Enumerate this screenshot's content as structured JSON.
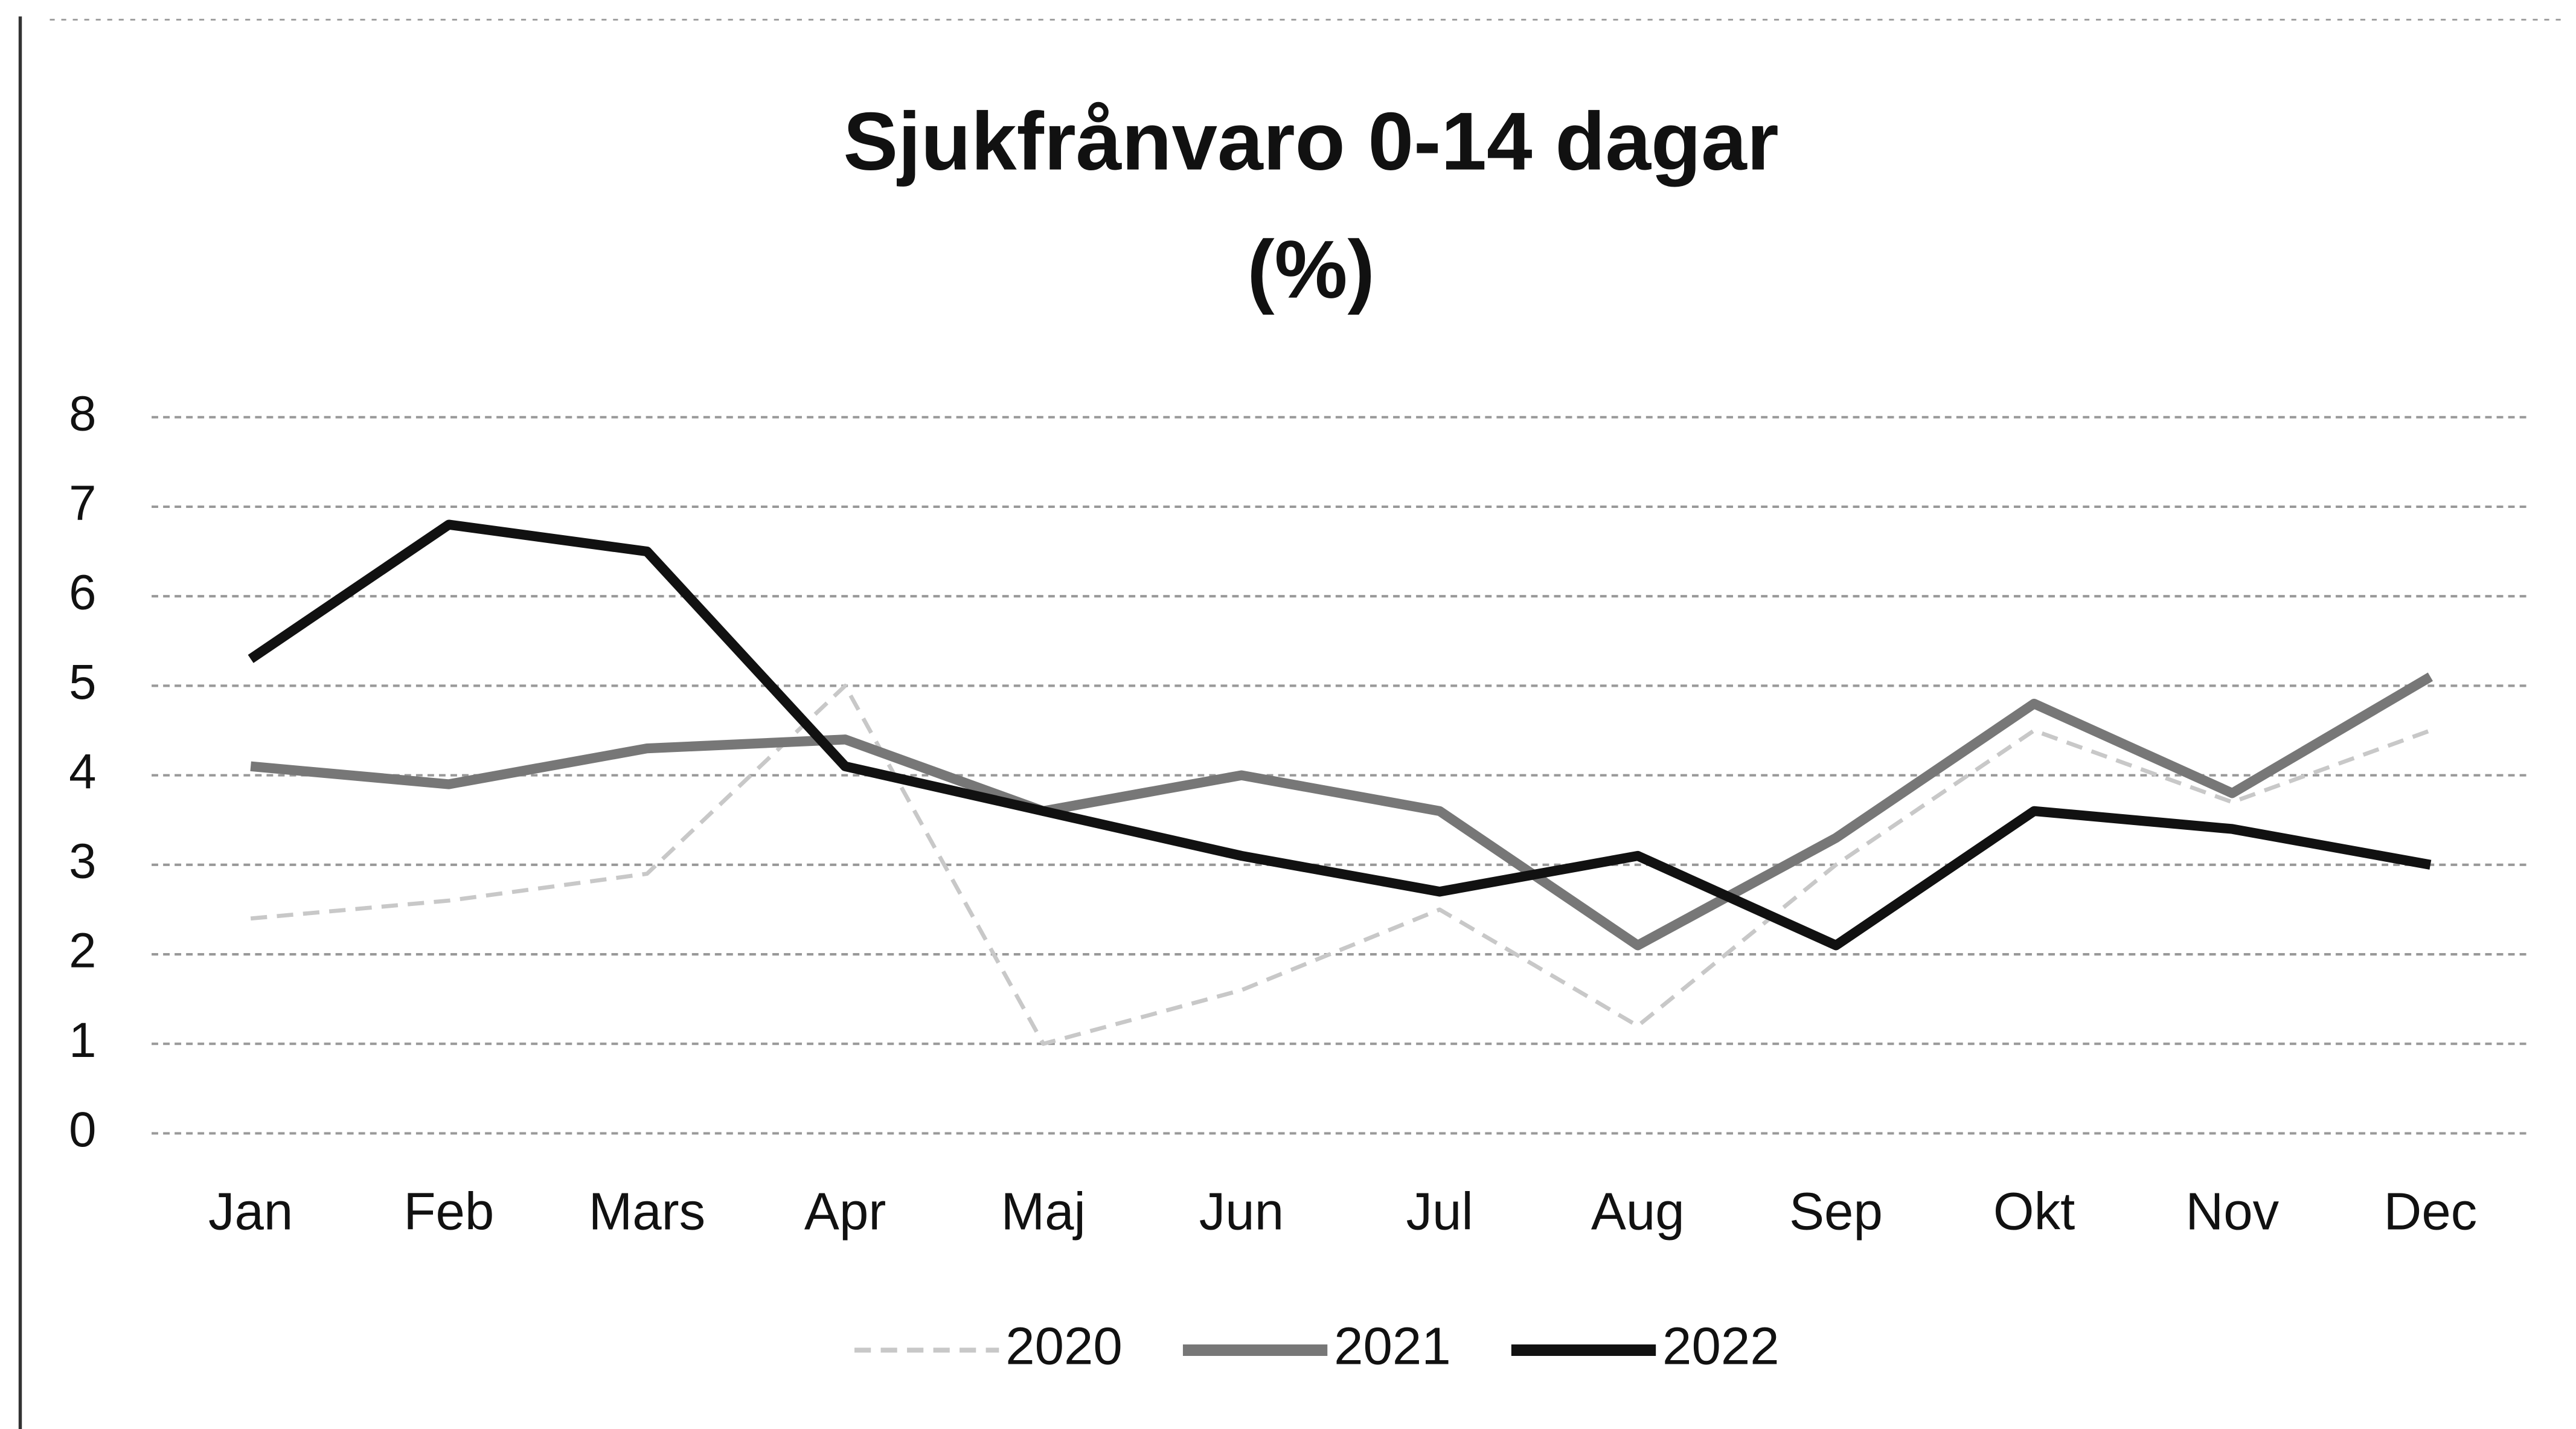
{
  "chart_data": {
    "type": "line",
    "title": [
      "Sjukfrånvaro 0-14 dagar",
      "(%)"
    ],
    "categories": [
      "Jan",
      "Feb",
      "Mars",
      "Apr",
      "Maj",
      "Jun",
      "Jul",
      "Aug",
      "Sep",
      "Okt",
      "Nov",
      "Dec"
    ],
    "series": [
      {
        "name": "2020",
        "color": "#c8c8c8",
        "dashed": true,
        "values": [
          2.4,
          2.6,
          2.9,
          5.0,
          1.0,
          1.6,
          2.5,
          1.2,
          3.0,
          4.5,
          3.7,
          4.5
        ]
      },
      {
        "name": "2021",
        "color": "#777777",
        "values": [
          4.1,
          3.9,
          4.3,
          4.4,
          3.6,
          4.0,
          3.6,
          2.1,
          3.3,
          4.8,
          3.8,
          5.1
        ]
      },
      {
        "name": "2022",
        "color": "#111111",
        "values": [
          5.3,
          6.8,
          6.5,
          4.1,
          3.6,
          3.1,
          2.7,
          3.1,
          2.1,
          3.6,
          3.4,
          3.0
        ]
      }
    ],
    "ylim": [
      0,
      8
    ],
    "yticks": [
      0,
      1,
      2,
      3,
      4,
      5,
      6,
      7,
      8
    ],
    "grid": true,
    "legend": "bottom"
  }
}
